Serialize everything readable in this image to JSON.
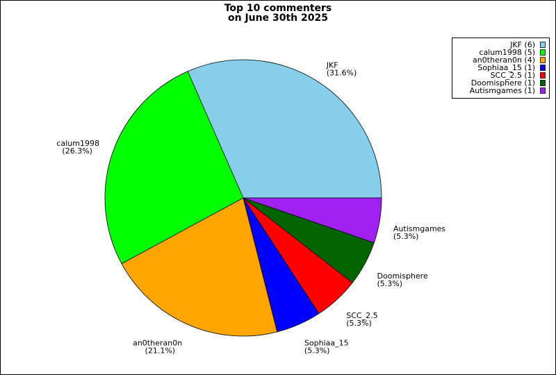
{
  "chart_data": {
    "type": "pie",
    "title": [
      "Top 10 commenters",
      "on June 30th 2025"
    ],
    "categories": [
      "JKF",
      "calum1998",
      "an0theran0n",
      "Sophiaa_15",
      "SCC_2.5",
      "Doomisphere",
      "Autismgames"
    ],
    "values": [
      6,
      5,
      4,
      1,
      1,
      1,
      1
    ],
    "value_labels": [
      "(31.6%)",
      "(26.3%)",
      "(21.1%)",
      "(5.3%)",
      "(5.3%)",
      "(5.3%)",
      "(5.3%)"
    ],
    "legend_labels": [
      "JKF (6)",
      "calum1998 (5)",
      "an0theran0n (4)",
      "Sophiaa_15 (1)",
      "SCC_2.5 (1)",
      "Doomisphere (1)",
      "Autismgames (1)"
    ],
    "colors": [
      "#87ceeb",
      "#00ff00",
      "#ffa500",
      "#0000ff",
      "#ff0000",
      "#006400",
      "#a020f0"
    ],
    "legend": "upper right"
  }
}
